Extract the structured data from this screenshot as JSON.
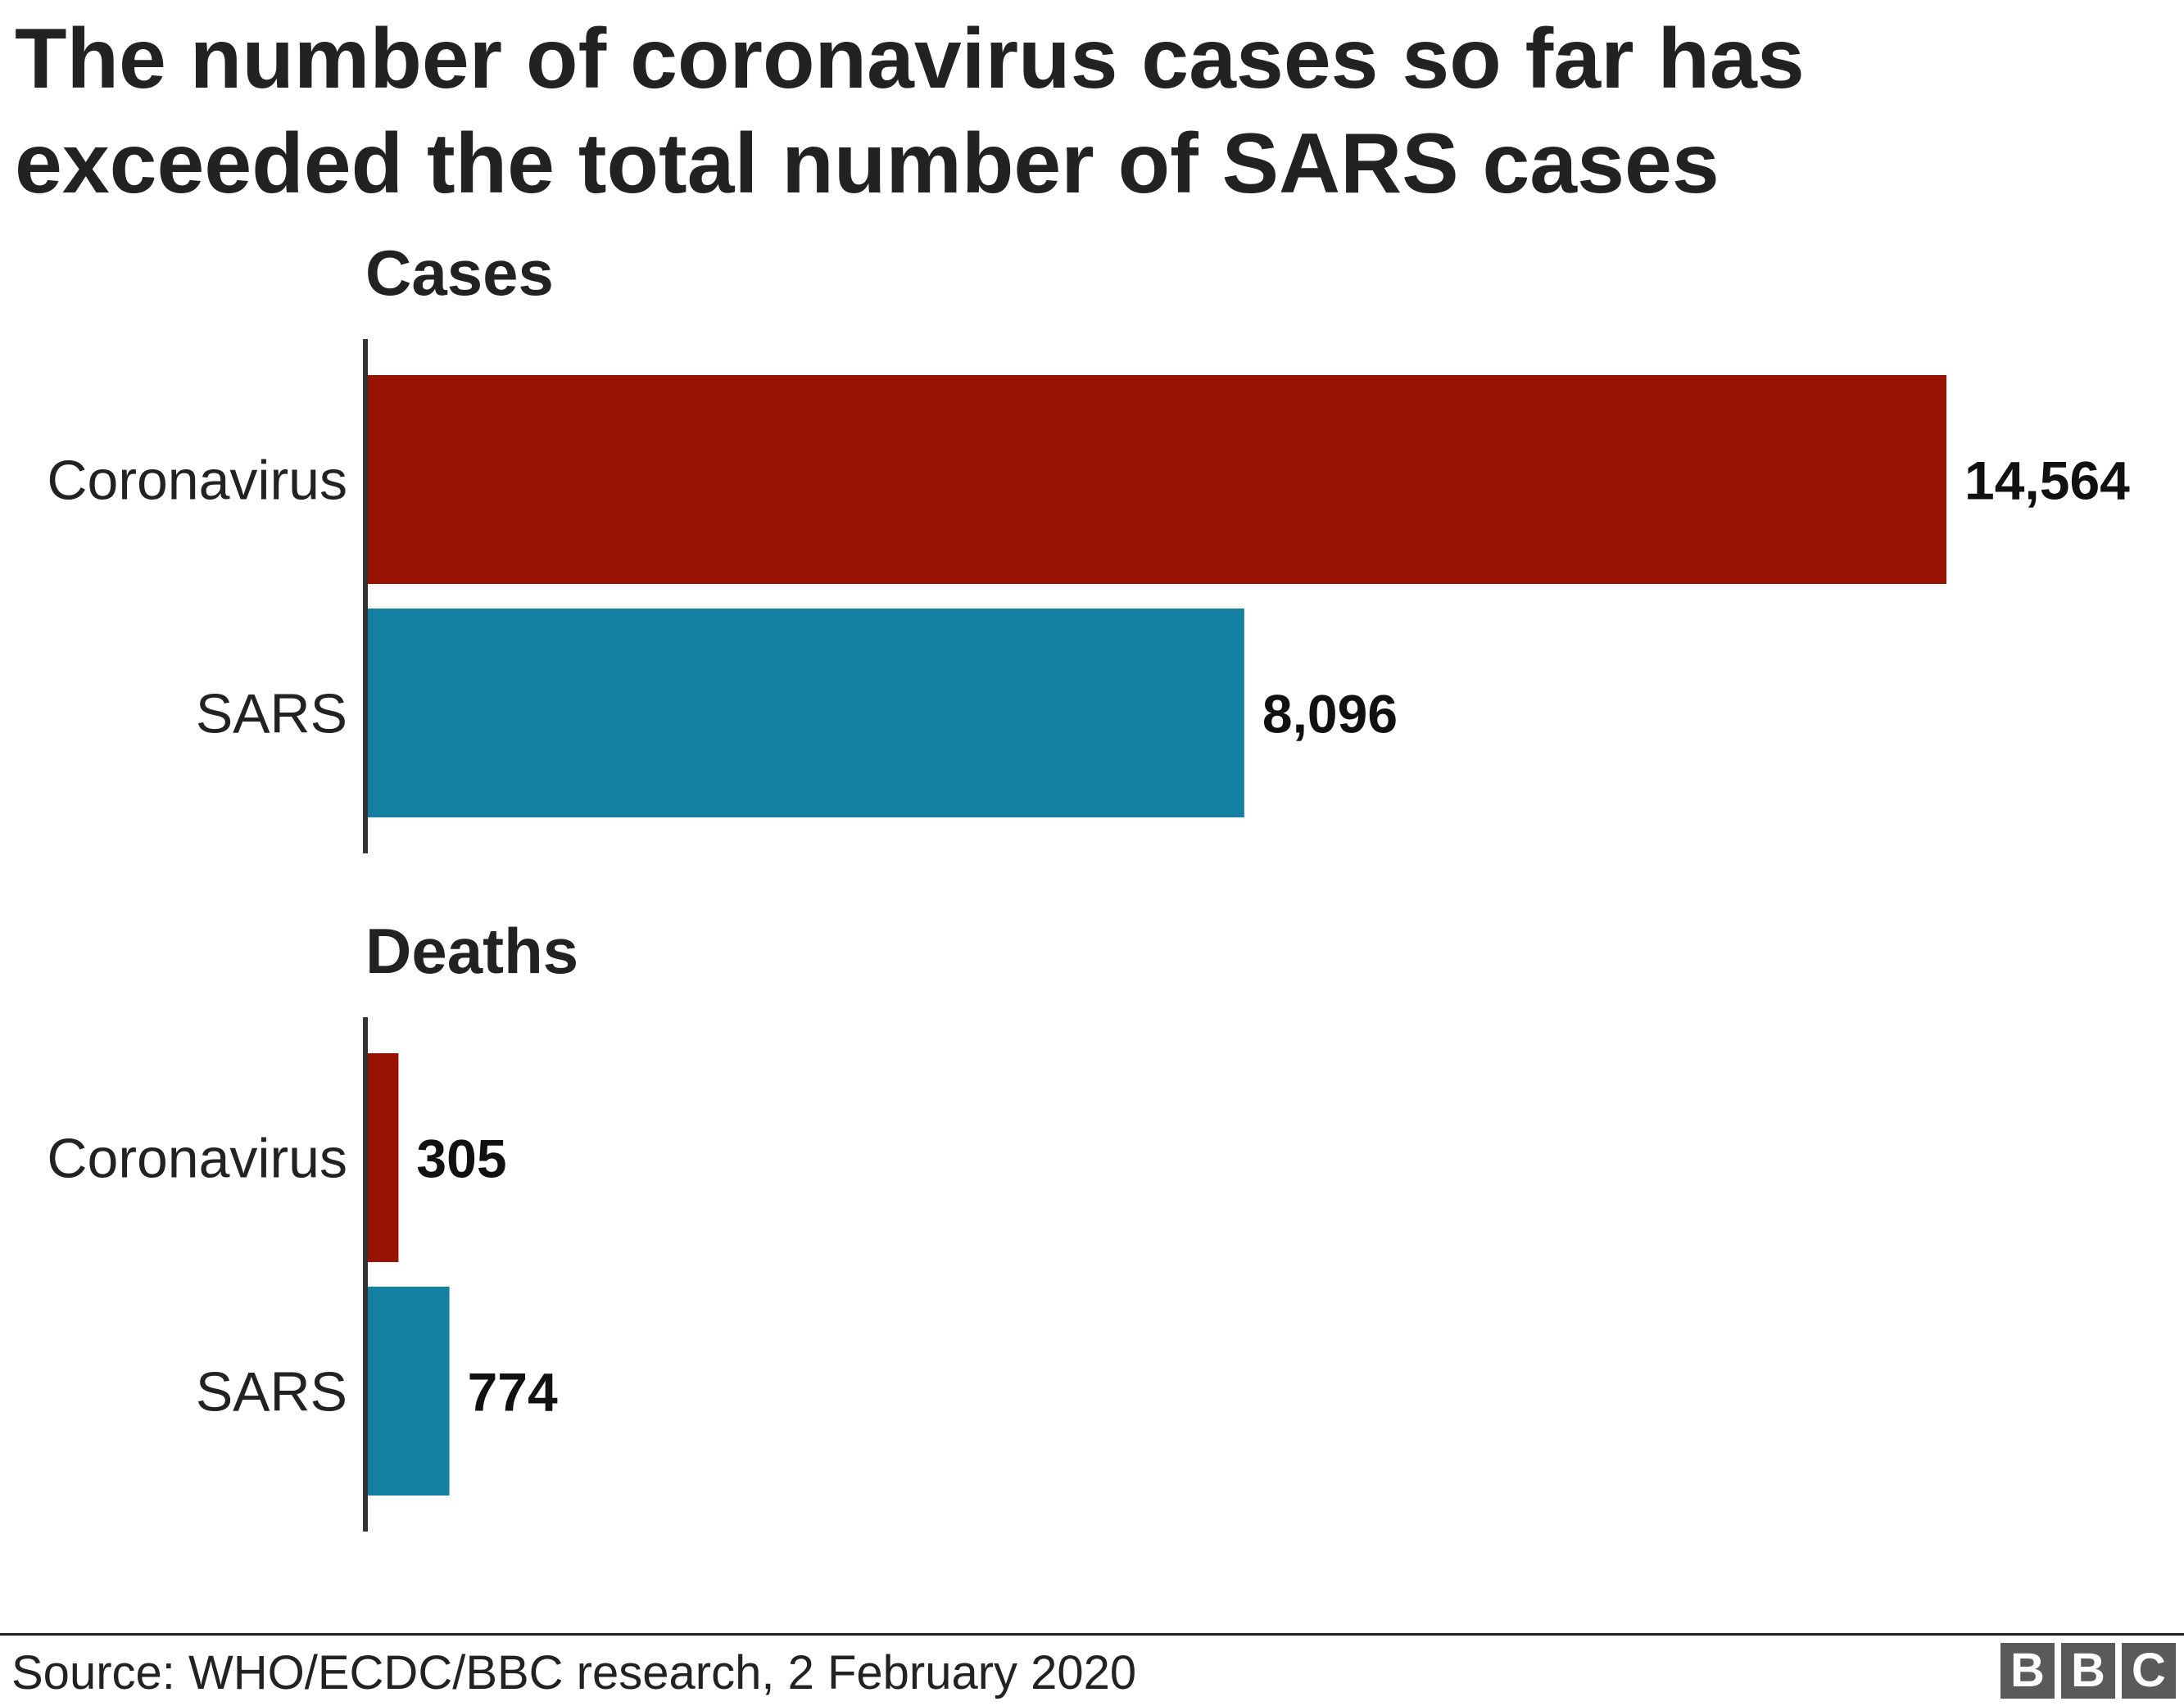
{
  "title_lines": [
    "The number of coronavirus cases so far has",
    "exceeded the total number of SARS cases"
  ],
  "chart_data": [
    {
      "type": "bar",
      "orientation": "horizontal",
      "title": "Cases",
      "categories": [
        "Coronavirus",
        "SARS"
      ],
      "values": [
        14564,
        8096
      ],
      "value_labels": [
        "14,564",
        "8,096"
      ],
      "colors": [
        "#981200",
        "#1380a1"
      ],
      "xlim": [
        0,
        14564
      ]
    },
    {
      "type": "bar",
      "orientation": "horizontal",
      "title": "Deaths",
      "categories": [
        "Coronavirus",
        "SARS"
      ],
      "values": [
        305,
        774
      ],
      "value_labels": [
        "305",
        "774"
      ],
      "colors": [
        "#981200",
        "#1380a1"
      ],
      "xlim": [
        0,
        14564
      ]
    }
  ],
  "footer": {
    "source": "Source: WHO/ECDC/BBC research, 2 February 2020",
    "logo_letters": [
      "B",
      "B",
      "C"
    ]
  }
}
